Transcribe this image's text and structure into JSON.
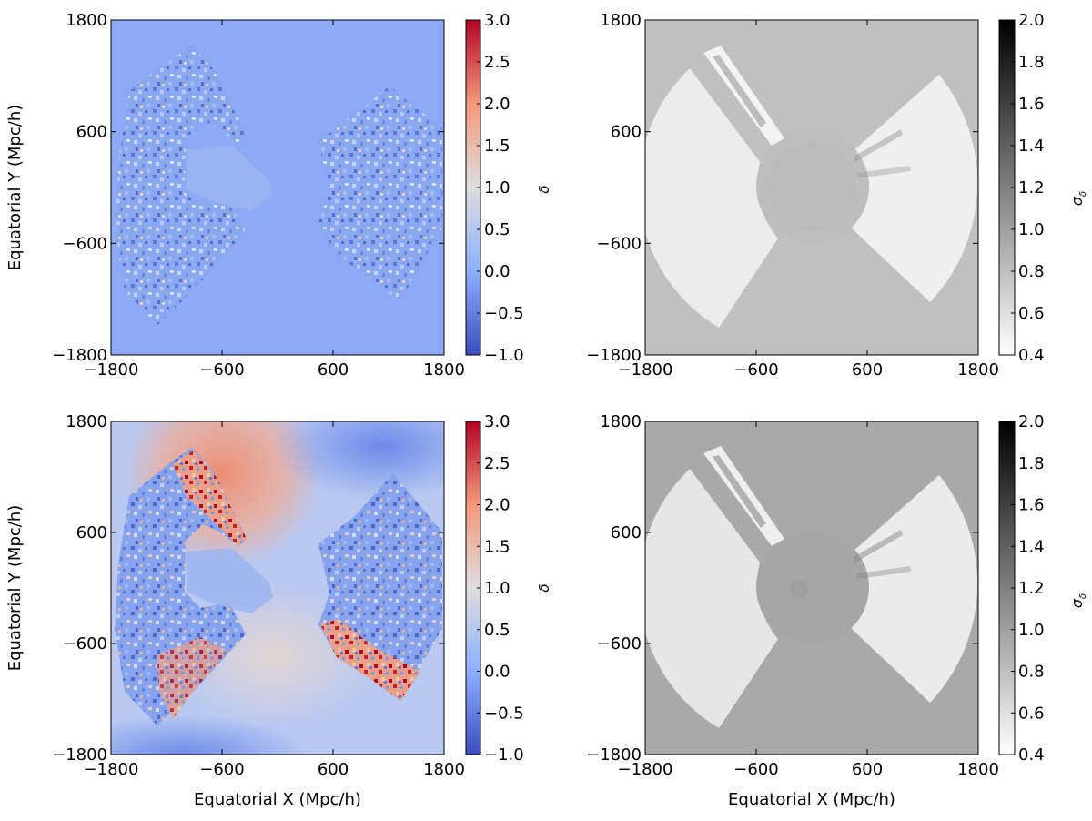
{
  "chart_data": [
    {
      "type": "heatmap",
      "panel": "top-left",
      "xlabel": "",
      "ylabel": "Equatorial Y (Mpc/h)",
      "xlim": [
        -1800,
        1800
      ],
      "ylim": [
        -1800,
        1800
      ],
      "xticks": [
        "−1800",
        "−600",
        "600",
        "1800"
      ],
      "yticks": [
        "−1800",
        "−600",
        "600",
        "1800"
      ],
      "colorbar": {
        "label": "δ",
        "colormap": "coolwarm",
        "range": [
          -1.0,
          3.0
        ],
        "ticks": [
          "−1.0",
          "−0.5",
          "0.0",
          "0.5",
          "1.0",
          "1.5",
          "2.0",
          "2.5",
          "3.0"
        ]
      },
      "background_value": -0.25,
      "grid": false
    },
    {
      "type": "heatmap",
      "panel": "top-right",
      "xlabel": "",
      "ylabel": "",
      "xlim": [
        -1800,
        1800
      ],
      "ylim": [
        -1800,
        1800
      ],
      "xticks": [
        "−1800",
        "−600",
        "600",
        "1800"
      ],
      "yticks": [
        "−1800",
        "−600",
        "600",
        "1800"
      ],
      "colorbar": {
        "label": "σ",
        "label_sub": "δ",
        "colormap": "gray_r",
        "range": [
          0.4,
          2.0
        ],
        "ticks": [
          "0.4",
          "0.6",
          "0.8",
          "1.0",
          "1.2",
          "1.4",
          "1.6",
          "1.8",
          "2.0"
        ]
      },
      "background_value": 1.0,
      "grid": false
    },
    {
      "type": "heatmap",
      "panel": "bottom-left",
      "xlabel": "Equatorial X (Mpc/h)",
      "ylabel": "Equatorial Y (Mpc/h)",
      "xlim": [
        -1800,
        1800
      ],
      "ylim": [
        -1800,
        1800
      ],
      "xticks": [
        "−1800",
        "−600",
        "600",
        "1800"
      ],
      "yticks": [
        "−1800",
        "−600",
        "600",
        "1800"
      ],
      "colorbar": {
        "label": "δ",
        "colormap": "coolwarm",
        "range": [
          -1.0,
          3.0
        ],
        "ticks": [
          "−1.0",
          "−0.5",
          "0.0",
          "0.5",
          "1.0",
          "1.5",
          "2.0",
          "2.5",
          "3.0"
        ]
      },
      "background_value": 0.2,
      "grid": false
    },
    {
      "type": "heatmap",
      "panel": "bottom-right",
      "xlabel": "Equatorial X (Mpc/h)",
      "ylabel": "",
      "xlim": [
        -1800,
        1800
      ],
      "ylim": [
        -1800,
        1800
      ],
      "xticks": [
        "−1800",
        "−600",
        "600",
        "1800"
      ],
      "yticks": [
        "−1800",
        "−600",
        "600",
        "1800"
      ],
      "colorbar": {
        "label": "σ",
        "label_sub": "δ",
        "colormap": "gray_r",
        "range": [
          0.4,
          2.0
        ],
        "ticks": [
          "0.4",
          "0.6",
          "0.8",
          "1.0",
          "1.2",
          "1.4",
          "1.6",
          "1.8",
          "2.0"
        ]
      },
      "background_value": 1.1,
      "grid": false
    }
  ]
}
